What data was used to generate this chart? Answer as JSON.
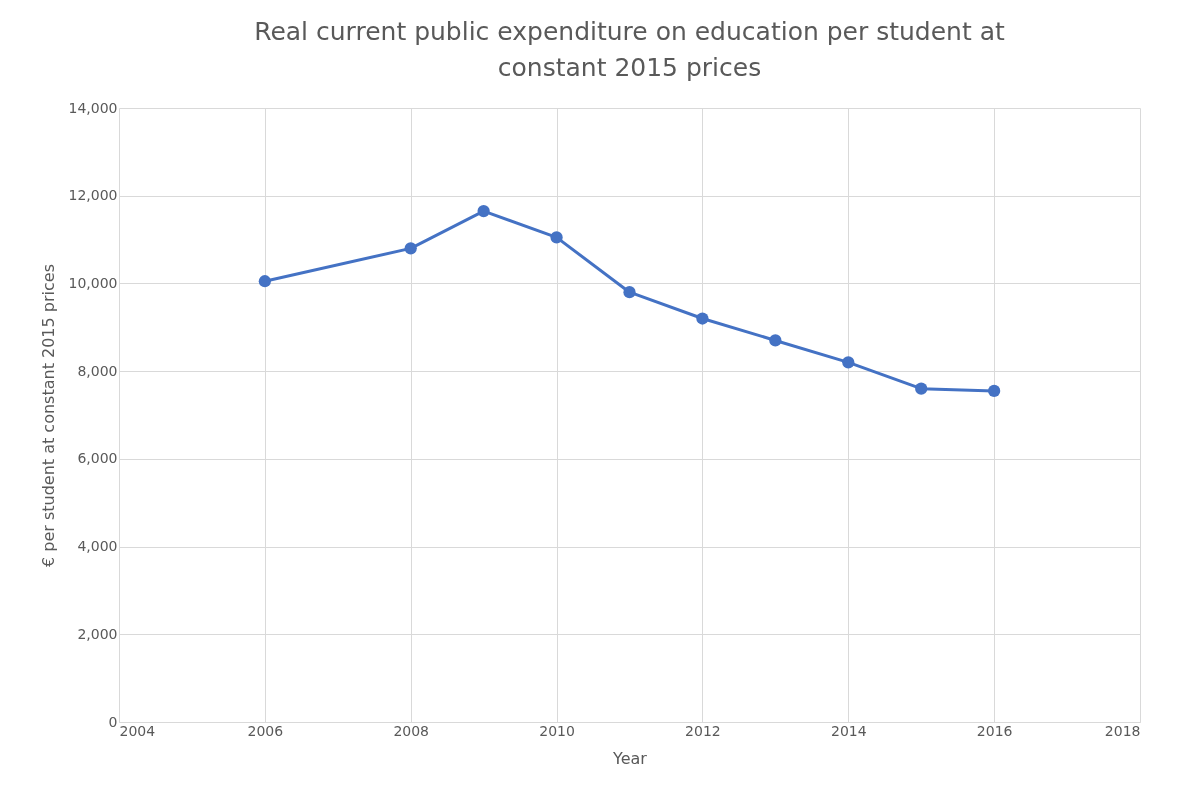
{
  "chart_data": {
    "type": "line",
    "title": "Real current public expenditure on education per student at constant 2015 prices",
    "xlabel": "Year",
    "ylabel": "€ per student at constant 2015 prices",
    "x": [
      2006,
      2008,
      2009,
      2010,
      2011,
      2012,
      2013,
      2014,
      2015,
      2016
    ],
    "series": [
      {
        "color": "#4472c4",
        "values": [
          10050,
          10800,
          11650,
          11050,
          9800,
          9200,
          8700,
          8200,
          7600,
          7550
        ]
      }
    ],
    "xlim": [
      2004,
      2018
    ],
    "xticks": [
      2004,
      2006,
      2008,
      2010,
      2012,
      2014,
      2016,
      2018
    ],
    "ylim": [
      0,
      14000
    ],
    "yticks": [
      0,
      {
        "value": 2000,
        "label": "2,000"
      },
      {
        "value": 4000,
        "label": "4,000"
      },
      {
        "value": 6000,
        "label": "6,000"
      },
      {
        "value": 8000,
        "label": "8,000"
      },
      {
        "value": 10000,
        "label": "10,000"
      },
      {
        "value": 12000,
        "label": "12,000"
      },
      {
        "value": 14000,
        "label": "14,000"
      }
    ],
    "grid": true,
    "marker": "circle",
    "line_style": "solid"
  }
}
